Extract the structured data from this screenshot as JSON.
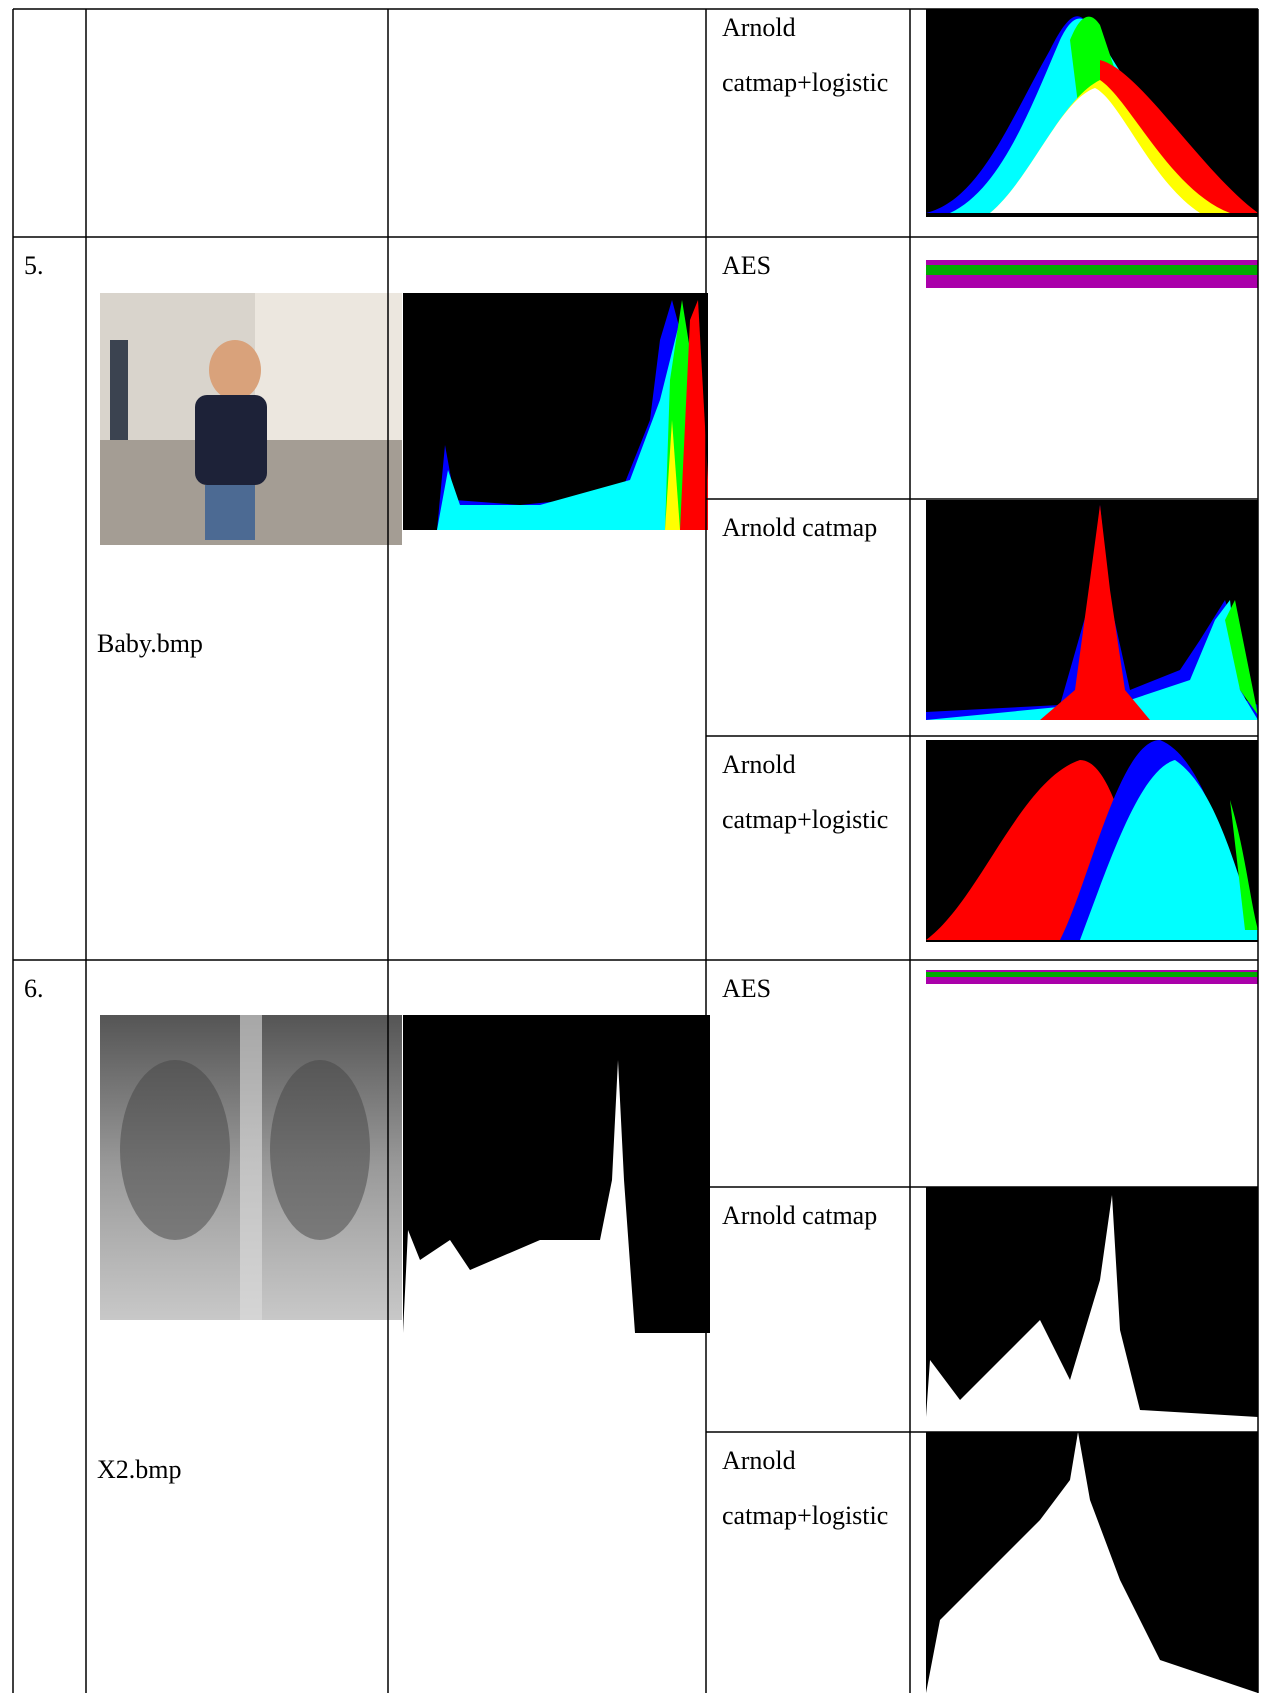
{
  "table": {
    "rows": [
      {
        "methods": [
          "Arnold catmap+logistic"
        ]
      },
      {
        "number": "5.",
        "file": "Baby.bmp",
        "methods": [
          "AES",
          "Arnold catmap",
          "Arnold catmap+logistic"
        ]
      },
      {
        "number": "6.",
        "file": "X2.bmp",
        "methods": [
          "AES",
          "Arnold catmap",
          "Arnold catmap+logistic"
        ]
      }
    ]
  }
}
